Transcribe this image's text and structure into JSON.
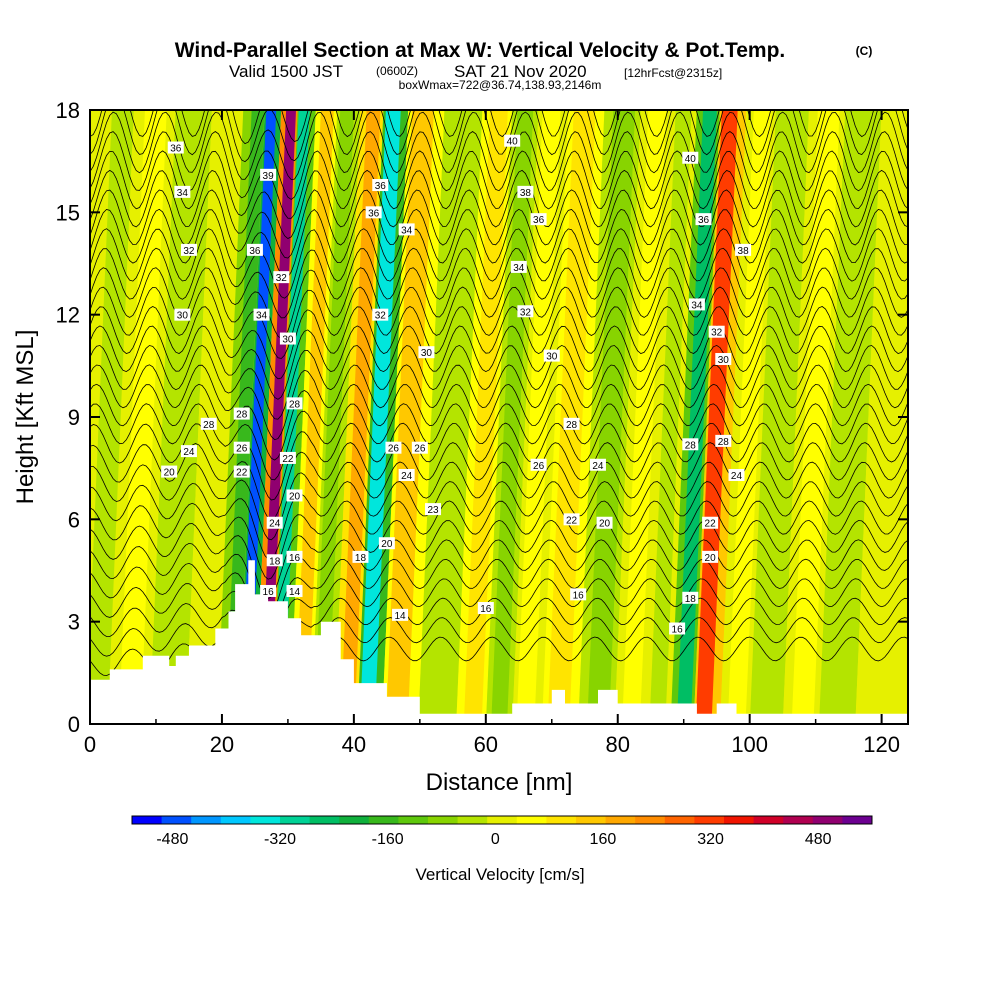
{
  "header": {
    "title": "Wind-Parallel Section at Max W: Vertical Velocity & Pot.Temp.",
    "title_mark": "(C)",
    "valid_prefix": "Valid 1500 JST",
    "valid_zulu": "(0600Z)",
    "valid_date": "SAT 21 Nov 2020",
    "forecast": "[12hrFcst@2315z]",
    "boxline": "boxWmax=722@36.74,138.93,2146m"
  },
  "chart_data": {
    "type": "heatmap",
    "title": "Wind-Parallel Section at Max W: Vertical Velocity & Pot.Temp.",
    "xlabel": "Distance [nm]",
    "ylabel": "Height [Kft MSL]",
    "xlim": [
      0,
      124
    ],
    "ylim": [
      0,
      18
    ],
    "x_ticks": [
      "0",
      "20",
      "40",
      "60",
      "80",
      "100",
      "120"
    ],
    "y_ticks": [
      "0",
      "3",
      "6",
      "9",
      "12",
      "15",
      "18"
    ],
    "grid": false,
    "terrain_profile": {
      "x": [
        0,
        3,
        3,
        8,
        8,
        12,
        12,
        13,
        13,
        15,
        15,
        19,
        19,
        21,
        21,
        22,
        22,
        24,
        24,
        25,
        25,
        27,
        27,
        30,
        30,
        32,
        32,
        35,
        35,
        38,
        38,
        40,
        40,
        45,
        45,
        50,
        50,
        64,
        64,
        70,
        70,
        72,
        72,
        77,
        77,
        80,
        80,
        92,
        92,
        95,
        95,
        98,
        98,
        124
      ],
      "y": [
        1.3,
        1.3,
        1.6,
        1.6,
        2.0,
        2.0,
        1.7,
        1.7,
        2.0,
        2.0,
        2.3,
        2.3,
        2.8,
        2.8,
        3.3,
        3.3,
        4.1,
        4.1,
        4.8,
        4.8,
        3.8,
        3.8,
        3.6,
        3.6,
        3.1,
        3.1,
        2.6,
        2.6,
        3.0,
        3.0,
        1.9,
        1.9,
        1.2,
        1.2,
        0.8,
        0.8,
        0.3,
        0.3,
        0.6,
        0.6,
        1.0,
        1.0,
        0.6,
        0.6,
        1.0,
        1.0,
        0.6,
        0.6,
        0.3,
        0.3,
        0.6,
        0.6,
        0.3,
        0.3
      ]
    },
    "vertical_velocity_bands": {
      "unit": "cm/s",
      "x_center": [
        3,
        8,
        14,
        19,
        23.5,
        25.5,
        28.5,
        30.5,
        34,
        37,
        41,
        44,
        48.5,
        55,
        60,
        64,
        68,
        73,
        79,
        84,
        88,
        92,
        95,
        100,
        104,
        110,
        115,
        121
      ],
      "w": [
        -20,
        40,
        -40,
        20,
        -150,
        -480,
        500,
        -300,
        120,
        -80,
        200,
        -350,
        150,
        -40,
        100,
        -60,
        40,
        100,
        -60,
        60,
        -20,
        -250,
        300,
        40,
        -50,
        60,
        -40,
        20
      ]
    },
    "potential_temperature_labels": {
      "values": [
        16,
        18,
        20,
        22,
        24,
        26,
        28,
        30,
        32,
        34,
        36,
        38,
        39,
        40
      ],
      "unit": "unlabeled"
    },
    "colorbar": {
      "label": "Vertical Velocity [cm/s]",
      "ticks": [
        "-480",
        "-320",
        "-160",
        "0",
        "160",
        "320",
        "480"
      ],
      "range": [
        -540,
        560
      ],
      "colors": [
        "#0000ff",
        "#0050ff",
        "#0096ff",
        "#00c8ff",
        "#00e6dc",
        "#00d296",
        "#00be64",
        "#10b03c",
        "#38b81c",
        "#5ec80c",
        "#88d400",
        "#b4e400",
        "#e6f000",
        "#ffff00",
        "#ffe400",
        "#ffc800",
        "#ffa800",
        "#ff8c00",
        "#ff6400",
        "#ff3c00",
        "#f01400",
        "#d00028",
        "#b00050",
        "#900070",
        "#6c0090"
      ]
    },
    "contour_labels": [
      {
        "v": "36",
        "x": 13,
        "y": 16.9
      },
      {
        "v": "34",
        "x": 14,
        "y": 15.6
      },
      {
        "v": "32",
        "x": 15,
        "y": 13.9
      },
      {
        "v": "30",
        "x": 14,
        "y": 12.0
      },
      {
        "v": "28",
        "x": 18,
        "y": 8.8
      },
      {
        "v": "24",
        "x": 15,
        "y": 8.0
      },
      {
        "v": "20",
        "x": 12,
        "y": 7.4
      },
      {
        "v": "22",
        "x": 23,
        "y": 7.4
      },
      {
        "v": "26",
        "x": 23,
        "y": 8.1
      },
      {
        "v": "28",
        "x": 23,
        "y": 9.1
      },
      {
        "v": "36",
        "x": 25,
        "y": 13.9
      },
      {
        "v": "34",
        "x": 26,
        "y": 12.0
      },
      {
        "v": "39",
        "x": 27,
        "y": 16.1
      },
      {
        "v": "32",
        "x": 29,
        "y": 13.1
      },
      {
        "v": "30",
        "x": 30,
        "y": 11.3
      },
      {
        "v": "28",
        "x": 31,
        "y": 9.4
      },
      {
        "v": "22",
        "x": 30,
        "y": 7.8
      },
      {
        "v": "20",
        "x": 31,
        "y": 6.7
      },
      {
        "v": "24",
        "x": 28,
        "y": 5.9
      },
      {
        "v": "18",
        "x": 28,
        "y": 4.8
      },
      {
        "v": "16",
        "x": 27,
        "y": 3.9
      },
      {
        "v": "16",
        "x": 31,
        "y": 4.9
      },
      {
        "v": "14",
        "x": 31,
        "y": 3.9
      },
      {
        "v": "18",
        "x": 41,
        "y": 4.9
      },
      {
        "v": "14",
        "x": 47,
        "y": 3.2
      },
      {
        "v": "20",
        "x": 45,
        "y": 5.3
      },
      {
        "v": "23",
        "x": 52,
        "y": 6.3
      },
      {
        "v": "24",
        "x": 48,
        "y": 7.3
      },
      {
        "v": "26",
        "x": 46,
        "y": 8.1
      },
      {
        "v": "26",
        "x": 50,
        "y": 8.1
      },
      {
        "v": "30",
        "x": 51,
        "y": 10.9
      },
      {
        "v": "32",
        "x": 44,
        "y": 12.0
      },
      {
        "v": "34",
        "x": 48,
        "y": 14.5
      },
      {
        "v": "36",
        "x": 43,
        "y": 15.0
      },
      {
        "v": "36",
        "x": 44,
        "y": 15.8
      },
      {
        "v": "40",
        "x": 64,
        "y": 17.1
      },
      {
        "v": "38",
        "x": 66,
        "y": 15.6
      },
      {
        "v": "36",
        "x": 68,
        "y": 14.8
      },
      {
        "v": "34",
        "x": 65,
        "y": 13.4
      },
      {
        "v": "32",
        "x": 66,
        "y": 12.1
      },
      {
        "v": "30",
        "x": 70,
        "y": 10.8
      },
      {
        "v": "28",
        "x": 73,
        "y": 8.8
      },
      {
        "v": "26",
        "x": 68,
        "y": 7.6
      },
      {
        "v": "24",
        "x": 77,
        "y": 7.6
      },
      {
        "v": "22",
        "x": 73,
        "y": 6.0
      },
      {
        "v": "20",
        "x": 78,
        "y": 5.9
      },
      {
        "v": "16",
        "x": 74,
        "y": 3.8
      },
      {
        "v": "16",
        "x": 60,
        "y": 3.4
      },
      {
        "v": "40",
        "x": 91,
        "y": 16.6
      },
      {
        "v": "36",
        "x": 93,
        "y": 14.8
      },
      {
        "v": "38",
        "x": 99,
        "y": 13.9
      },
      {
        "v": "34",
        "x": 92,
        "y": 12.3
      },
      {
        "v": "32",
        "x": 95,
        "y": 11.5
      },
      {
        "v": "30",
        "x": 96,
        "y": 10.7
      },
      {
        "v": "28",
        "x": 91,
        "y": 8.2
      },
      {
        "v": "28",
        "x": 96,
        "y": 8.3
      },
      {
        "v": "24",
        "x": 98,
        "y": 7.3
      },
      {
        "v": "22",
        "x": 94,
        "y": 5.9
      },
      {
        "v": "20",
        "x": 94,
        "y": 4.9
      },
      {
        "v": "18",
        "x": 91,
        "y": 3.7
      },
      {
        "v": "16",
        "x": 89,
        "y": 2.8
      }
    ]
  }
}
